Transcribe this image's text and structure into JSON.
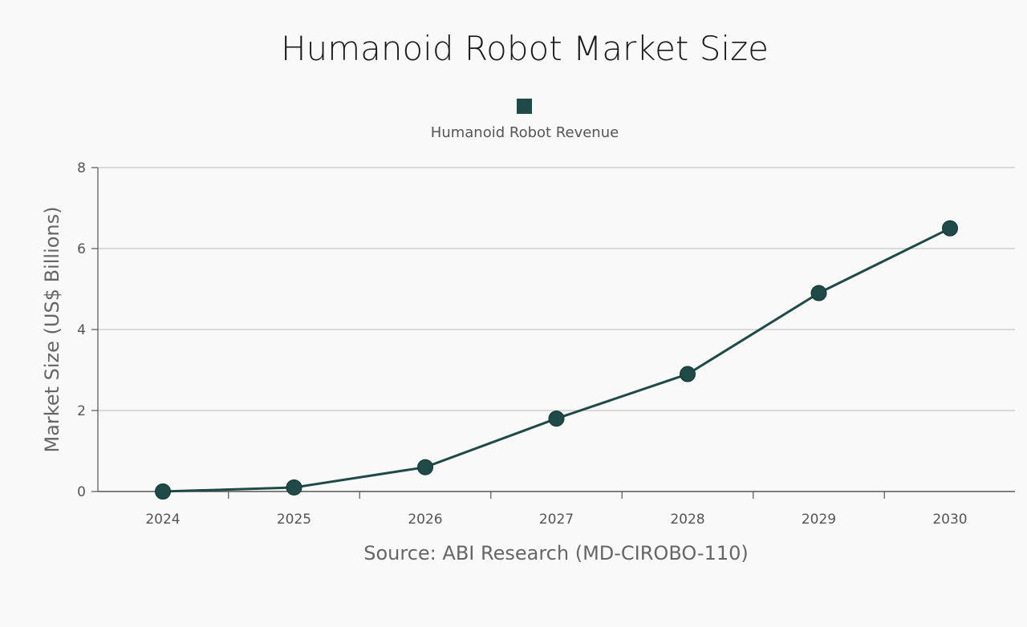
{
  "chart_data": {
    "type": "line",
    "title": "Humanoid Robot Market Size",
    "xlabel": "Source: ABI Research (MD-CIROBO-110)",
    "ylabel": "Market Size (US$ Billions)",
    "categories": [
      "2024",
      "2025",
      "2026",
      "2027",
      "2028",
      "2029",
      "2030"
    ],
    "series": [
      {
        "name": "Humanoid Robot Revenue",
        "values": [
          0.0,
          0.1,
          0.6,
          1.8,
          2.9,
          4.9,
          6.5
        ],
        "color": "#1f4a47"
      }
    ],
    "ylim": [
      0,
      8
    ],
    "yticks": [
      "0",
      "2",
      "4",
      "6",
      "8"
    ],
    "grid": true,
    "legend_position": "top-center"
  }
}
